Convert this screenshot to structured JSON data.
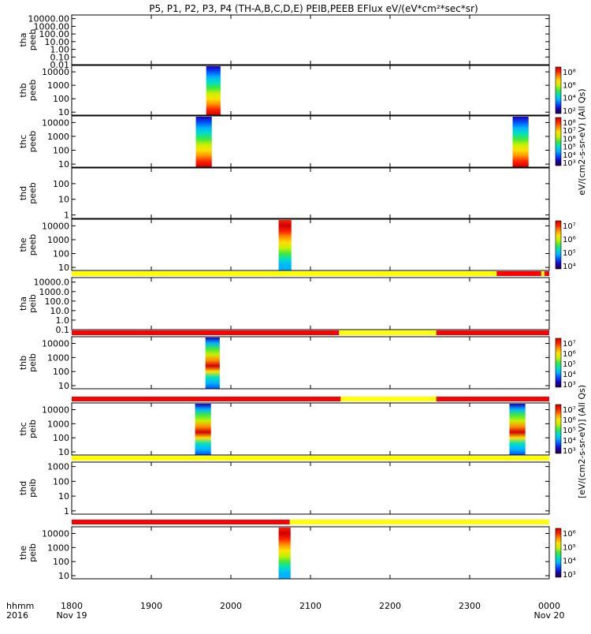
{
  "title": "P5, P1, P2, P3, P4 (TH-A,B,C,D,E) PEIB,PEEB EFlux eV/(eV*cm²*sec*sr)",
  "time_axis": {
    "row1_label": "hhmm",
    "row2_label": "2016",
    "ticks": [
      {
        "t": 0,
        "label": "1800",
        "date": "Nov 19"
      },
      {
        "t": 100,
        "label": "1900",
        "date": ""
      },
      {
        "t": 200,
        "label": "2000",
        "date": ""
      },
      {
        "t": 300,
        "label": "2100",
        "date": ""
      },
      {
        "t": 400,
        "label": "2200",
        "date": ""
      },
      {
        "t": 500,
        "label": "2300",
        "date": ""
      },
      {
        "t": 600,
        "label": "0000",
        "date": "Nov 20"
      }
    ]
  },
  "colorbar_units": {
    "eflux": "eV/(cm2-s-sr-eV)",
    "peeb": "(All Qs)",
    "peib": "[eV/(cm2-s-sr-eV)] (All Qs)"
  },
  "colors": {
    "palette": [
      "#28003c",
      "#1a00b4",
      "#0050ff",
      "#00b4ff",
      "#00e0c0",
      "#40e840",
      "#c8f000",
      "#ffe000",
      "#ff9000",
      "#ff2000",
      "#d00000"
    ],
    "flag_red": "#ff0000",
    "flag_yellow": "#ffff00"
  },
  "chart_data": [
    {
      "type": "heatmap",
      "probe": "tha",
      "product": "peeb",
      "ylabel": [
        "tha",
        "peeb"
      ],
      "yticks": [
        "10000.00",
        "1000.00",
        "100.00",
        "10.00",
        "1.00",
        "0.10",
        "0.01"
      ],
      "yrange": [
        0.01,
        30000
      ],
      "ylog": true,
      "blocks": [],
      "flag": [],
      "colorbar": null
    },
    {
      "type": "heatmap",
      "probe": "thb",
      "product": "peeb",
      "ylabel": [
        "thb",
        "peeb"
      ],
      "yticks": [
        "10000",
        "1000",
        "100",
        "10"
      ],
      "yrange": [
        6,
        30000
      ],
      "ylog": true,
      "blocks": [
        {
          "t0": 169,
          "t1": 187
        }
      ],
      "flag": [],
      "colorbar": {
        "labels": [
          "10⁸",
          "10⁶",
          "10⁴",
          "10²"
        ]
      }
    },
    {
      "type": "heatmap",
      "probe": "thc",
      "product": "peeb",
      "ylabel": [
        "thc",
        "peeb"
      ],
      "yticks": [
        "10000",
        "1000",
        "100",
        "10"
      ],
      "yrange": [
        6,
        30000
      ],
      "ylog": true,
      "blocks": [
        {
          "t0": 156,
          "t1": 176
        },
        {
          "t0": 554,
          "t1": 574
        }
      ],
      "flag": [],
      "colorbar": {
        "labels": [
          "10⁸",
          "10⁷",
          "10⁶",
          "10⁵",
          "10⁴",
          "10³"
        ]
      }
    },
    {
      "type": "heatmap",
      "probe": "thd",
      "product": "peeb",
      "ylabel": [
        "thd",
        "peeb"
      ],
      "yticks": [
        "100",
        "10",
        "1"
      ],
      "yrange": [
        0.6,
        1000
      ],
      "ylog": true,
      "blocks": [],
      "flag": [],
      "colorbar": null
    },
    {
      "type": "heatmap",
      "probe": "the",
      "product": "peeb",
      "ylabel": [
        "the",
        "peeb"
      ],
      "yticks": [
        "10000",
        "1000",
        "100",
        "10"
      ],
      "yrange": [
        6,
        30000
      ],
      "ylog": true,
      "blocks": [
        {
          "t0": 260,
          "t1": 276
        }
      ],
      "flag": [],
      "colorbar": {
        "labels": [
          "10⁷",
          "10⁶",
          "10⁵",
          "10⁴"
        ]
      }
    },
    {
      "type": "heatmap",
      "probe": "tha",
      "product": "peib",
      "ylabel": [
        "tha",
        "peib"
      ],
      "yticks": [
        "10000.0",
        "1000.0",
        "100.0",
        "10.0",
        "1.0",
        "0.1"
      ],
      "yrange": [
        0.1,
        30000
      ],
      "ylog": true,
      "blocks": [],
      "flag": [
        {
          "t0": 0,
          "t1": 534,
          "c": "yellow"
        },
        {
          "t0": 534,
          "t1": 590,
          "c": "red"
        },
        {
          "t0": 590,
          "t1": 594,
          "c": "yellow"
        },
        {
          "t0": 594,
          "t1": 606,
          "c": "red"
        }
      ],
      "colorbar": null
    },
    {
      "type": "heatmap",
      "probe": "thb",
      "product": "peib",
      "ylabel": [
        "thb",
        "peib"
      ],
      "yticks": [
        "10000",
        "1000",
        "100",
        "10"
      ],
      "yrange": [
        6,
        30000
      ],
      "ylog": true,
      "blocks": [
        {
          "t0": 168,
          "t1": 186
        }
      ],
      "flag": [
        {
          "t0": 0,
          "t1": 336,
          "c": "red"
        },
        {
          "t0": 336,
          "t1": 458,
          "c": "yellow"
        },
        {
          "t0": 458,
          "t1": 606,
          "c": "red"
        }
      ],
      "colorbar": {
        "labels": [
          "10⁷",
          "10⁶",
          "10⁵",
          "10⁴",
          "10³"
        ]
      }
    },
    {
      "type": "heatmap",
      "probe": "thc",
      "product": "peib",
      "ylabel": [
        "thc",
        "peib"
      ],
      "yticks": [
        "10000",
        "1000",
        "100",
        "10"
      ],
      "yrange": [
        6,
        30000
      ],
      "ylog": true,
      "blocks": [
        {
          "t0": 155,
          "t1": 175
        },
        {
          "t0": 550,
          "t1": 570
        }
      ],
      "flag": [
        {
          "t0": 0,
          "t1": 338,
          "c": "red"
        },
        {
          "t0": 338,
          "t1": 458,
          "c": "yellow"
        },
        {
          "t0": 458,
          "t1": 606,
          "c": "red"
        }
      ],
      "colorbar": {
        "labels": [
          "10⁷",
          "10⁶",
          "10⁵",
          "10⁴",
          "10³"
        ]
      }
    },
    {
      "type": "heatmap",
      "probe": "thd",
      "product": "peib",
      "ylabel": [
        "thd",
        "peib"
      ],
      "yticks": [
        "1000",
        "100",
        "10",
        "1"
      ],
      "yrange": [
        0.6,
        2000
      ],
      "ylog": true,
      "blocks": [],
      "flag": [
        {
          "t0": 0,
          "t1": 606,
          "c": "yellow"
        }
      ],
      "colorbar": null
    },
    {
      "type": "heatmap",
      "probe": "the",
      "product": "peib",
      "ylabel": [
        "the",
        "peib"
      ],
      "yticks": [
        "10000",
        "1000",
        "100",
        "10"
      ],
      "yrange": [
        6,
        30000
      ],
      "ylog": true,
      "blocks": [
        {
          "t0": 260,
          "t1": 275
        }
      ],
      "flag": [
        {
          "t0": 0,
          "t1": 274,
          "c": "red"
        },
        {
          "t0": 274,
          "t1": 606,
          "c": "yellow"
        }
      ],
      "colorbar": {
        "labels": [
          "10⁶",
          "10⁵",
          "10⁴",
          "10³"
        ]
      }
    }
  ]
}
